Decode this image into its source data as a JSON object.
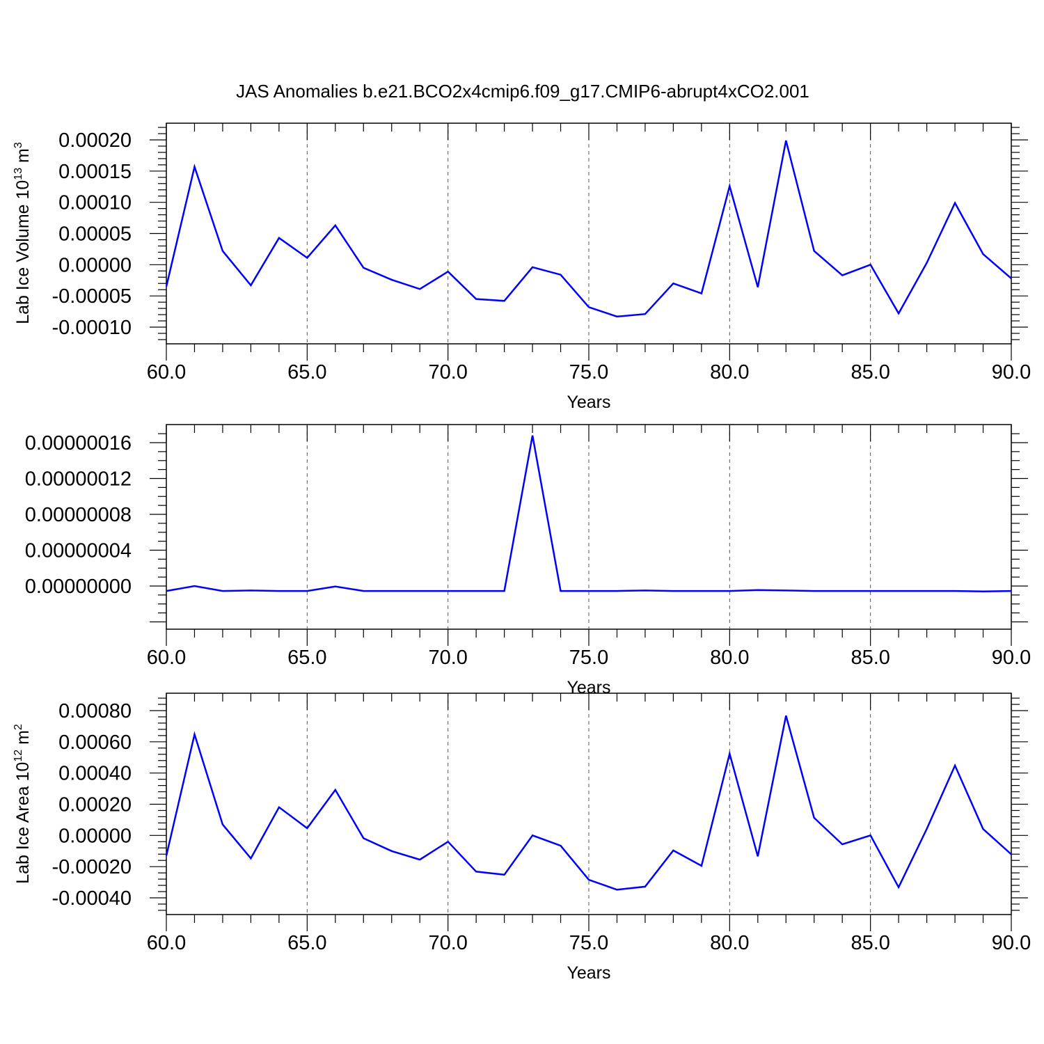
{
  "title": "JAS Anomalies b.e21.BCO2x4cmip6.f09_g17.CMIP6-abrupt4xCO2.001",
  "line_color": "#0000ff",
  "chart_data": [
    {
      "type": "line",
      "xlabel": "Years",
      "ylabel_main": "Lab Ice Volume 10",
      "ylabel_exp": "13",
      "ylabel_unit": " m",
      "ylabel_unit_exp": "3",
      "xlim": [
        60,
        90
      ],
      "ylim": [
        -0.0001,
        0.0002
      ],
      "xticks": [
        "60.0",
        "65.0",
        "70.0",
        "75.0",
        "80.0",
        "85.0",
        "90.0"
      ],
      "yticks": [
        "0.00020",
        "0.00015",
        "0.00010",
        "0.00005",
        "0.00000",
        "-0.00005",
        "-0.00010"
      ],
      "grid": "x-dashed",
      "x": [
        60,
        61,
        62,
        63,
        64,
        65,
        66,
        67,
        68,
        69,
        70,
        71,
        72,
        73,
        74,
        75,
        76,
        77,
        78,
        79,
        80,
        81,
        82,
        83,
        84,
        85,
        86,
        87,
        88,
        89,
        90
      ],
      "values": [
        -3.5e-05,
        0.000157,
        2.2e-05,
        -3.3e-05,
        4.3e-05,
        1.1e-05,
        6.3e-05,
        -5e-06,
        -2.4e-05,
        -3.9e-05,
        -1.1e-05,
        -5.5e-05,
        -5.8e-05,
        -4e-06,
        -1.6e-05,
        -6.8e-05,
        -8.3e-05,
        -7.9e-05,
        -3e-05,
        -4.6e-05,
        0.000126,
        -3.6e-05,
        0.000199,
        2.2e-05,
        -1.7e-05,
        0.0,
        -7.8e-05,
        3e-06,
        9.9e-05,
        1.7e-05,
        -2.2e-05
      ]
    },
    {
      "type": "line",
      "xlabel": "Years",
      "xlim": [
        60,
        90
      ],
      "ylim": [
        -4e-08,
        1.8e-07
      ],
      "xticks": [
        "60.0",
        "65.0",
        "70.0",
        "75.0",
        "80.0",
        "85.0",
        "90.0"
      ],
      "yticks": [
        "0.00000016",
        "0.00000012",
        "0.00000008",
        "0.00000004",
        "0.00000000"
      ],
      "grid": "x-dashed",
      "x": [
        60,
        61,
        62,
        63,
        64,
        65,
        66,
        67,
        68,
        69,
        70,
        71,
        72,
        73,
        74,
        75,
        76,
        77,
        78,
        79,
        80,
        81,
        82,
        83,
        84,
        85,
        86,
        87,
        88,
        89,
        90
      ],
      "values": [
        -5.5e-09,
        0.0,
        -5.5e-09,
        -5e-09,
        -5.5e-09,
        -5.5e-09,
        -5e-10,
        -5.5e-09,
        -5.5e-09,
        -5.5e-09,
        -5.5e-09,
        -5.5e-09,
        -5.5e-09,
        1.68e-07,
        -5.5e-09,
        -5.5e-09,
        -5.5e-09,
        -5e-09,
        -5.5e-09,
        -5.5e-09,
        -5.5e-09,
        -4.5e-09,
        -5e-09,
        -5.5e-09,
        -5.5e-09,
        -5.5e-09,
        -5.5e-09,
        -5.5e-09,
        -5.5e-09,
        -6e-09,
        -5.5e-09
      ]
    },
    {
      "type": "line",
      "xlabel": "Years",
      "ylabel_main": "Lab Ice Area 10",
      "ylabel_exp": "12",
      "ylabel_unit": " m",
      "ylabel_unit_exp": "2",
      "xlim": [
        60,
        90
      ],
      "ylim": [
        -0.0004,
        0.0008
      ],
      "xticks": [
        "60.0",
        "65.0",
        "70.0",
        "75.0",
        "80.0",
        "85.0",
        "90.0"
      ],
      "yticks": [
        "0.00080",
        "0.00060",
        "0.00040",
        "0.00020",
        "0.00000",
        "-0.00020",
        "-0.00040"
      ],
      "grid": "x-dashed",
      "x": [
        60,
        61,
        62,
        63,
        64,
        65,
        66,
        67,
        68,
        69,
        70,
        71,
        72,
        73,
        74,
        75,
        76,
        77,
        78,
        79,
        80,
        81,
        82,
        83,
        84,
        85,
        86,
        87,
        88,
        89,
        90
      ],
      "values": [
        -0.00013,
        0.000648,
        7e-05,
        -0.000147,
        0.000181,
        4.6e-05,
        0.000292,
        -1.8e-05,
        -0.0001,
        -0.000155,
        -4e-05,
        -0.000232,
        -0.000252,
        0.0,
        -6.6e-05,
        -0.000284,
        -0.000348,
        -0.000328,
        -9.6e-05,
        -0.000195,
        0.000524,
        -0.000134,
        0.000768,
        0.000113,
        -5.7e-05,
        0.0,
        -0.000332,
        4.2e-05,
        0.000448,
        4.1e-05,
        -0.000121
      ]
    }
  ]
}
